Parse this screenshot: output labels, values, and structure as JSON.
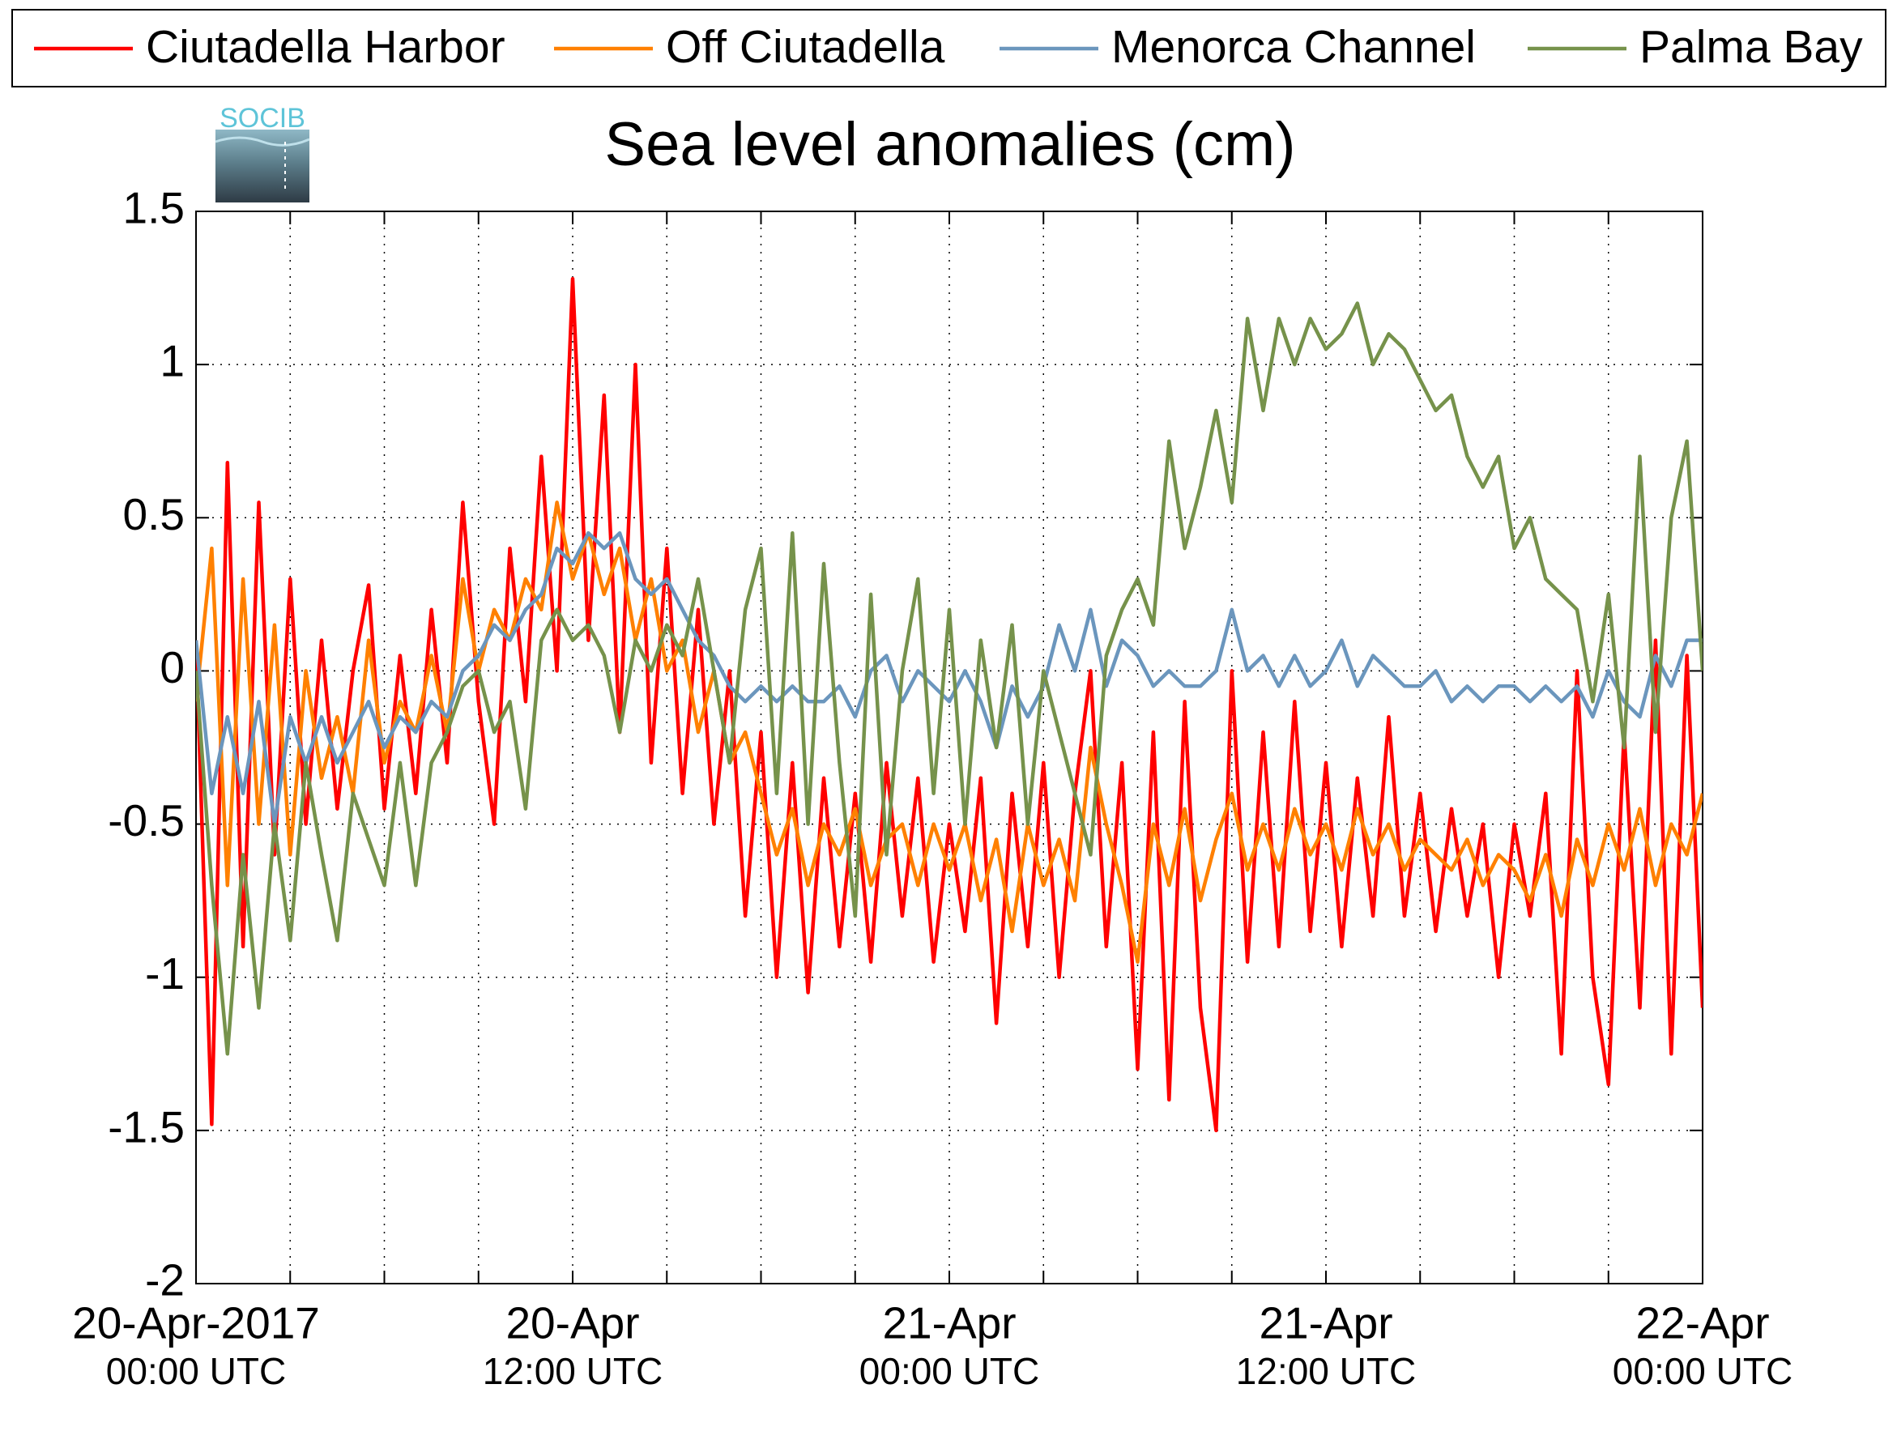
{
  "chart_data": {
    "type": "line",
    "title": "Sea level anomalies (cm)",
    "logo_text": "SOCIB",
    "legend": "top",
    "grid": true,
    "ylim": [
      -2,
      1.5
    ],
    "yticks": [
      -2,
      -1.5,
      -1,
      -0.5,
      0,
      0.5,
      1,
      1.5
    ],
    "xlim": [
      "2017-04-20T00:00",
      "2017-04-22T00:00"
    ],
    "xticks": [
      {
        "value": "2017-04-20T00:00",
        "label": [
          "20-Apr-2017",
          "00:00 UTC"
        ]
      },
      {
        "value": "2017-04-20T12:00",
        "label": [
          "20-Apr",
          "12:00 UTC"
        ]
      },
      {
        "value": "2017-04-21T00:00",
        "label": [
          "21-Apr",
          "00:00 UTC"
        ]
      },
      {
        "value": "2017-04-21T12:00",
        "label": [
          "21-Apr",
          "12:00 UTC"
        ]
      },
      {
        "value": "2017-04-22T00:00",
        "label": [
          "22-Apr",
          "00:00 UTC"
        ]
      }
    ],
    "xminorticks": [
      "2017-04-20T03:00",
      "2017-04-20T06:00",
      "2017-04-20T09:00",
      "2017-04-20T15:00",
      "2017-04-20T18:00",
      "2017-04-20T21:00",
      "2017-04-21T03:00",
      "2017-04-21T06:00",
      "2017-04-21T09:00",
      "2017-04-21T15:00",
      "2017-04-21T18:00",
      "2017-04-21T21:00"
    ],
    "x": [
      "2017-04-20T00:00",
      "2017-04-20T00:30",
      "2017-04-20T01:00",
      "2017-04-20T01:30",
      "2017-04-20T02:00",
      "2017-04-20T02:30",
      "2017-04-20T03:00",
      "2017-04-20T03:30",
      "2017-04-20T04:00",
      "2017-04-20T04:30",
      "2017-04-20T05:00",
      "2017-04-20T05:30",
      "2017-04-20T06:00",
      "2017-04-20T06:30",
      "2017-04-20T07:00",
      "2017-04-20T07:30",
      "2017-04-20T08:00",
      "2017-04-20T08:30",
      "2017-04-20T09:00",
      "2017-04-20T09:30",
      "2017-04-20T10:00",
      "2017-04-20T10:30",
      "2017-04-20T11:00",
      "2017-04-20T11:30",
      "2017-04-20T12:00",
      "2017-04-20T12:30",
      "2017-04-20T13:00",
      "2017-04-20T13:30",
      "2017-04-20T14:00",
      "2017-04-20T14:30",
      "2017-04-20T15:00",
      "2017-04-20T15:30",
      "2017-04-20T16:00",
      "2017-04-20T16:30",
      "2017-04-20T17:00",
      "2017-04-20T17:30",
      "2017-04-20T18:00",
      "2017-04-20T18:30",
      "2017-04-20T19:00",
      "2017-04-20T19:30",
      "2017-04-20T20:00",
      "2017-04-20T20:30",
      "2017-04-20T21:00",
      "2017-04-20T21:30",
      "2017-04-20T22:00",
      "2017-04-20T22:30",
      "2017-04-20T23:00",
      "2017-04-20T23:30",
      "2017-04-21T00:00",
      "2017-04-21T00:30",
      "2017-04-21T01:00",
      "2017-04-21T01:30",
      "2017-04-21T02:00",
      "2017-04-21T02:30",
      "2017-04-21T03:00",
      "2017-04-21T03:30",
      "2017-04-21T04:00",
      "2017-04-21T04:30",
      "2017-04-21T05:00",
      "2017-04-21T05:30",
      "2017-04-21T06:00",
      "2017-04-21T06:30",
      "2017-04-21T07:00",
      "2017-04-21T07:30",
      "2017-04-21T08:00",
      "2017-04-21T08:30",
      "2017-04-21T09:00",
      "2017-04-21T09:30",
      "2017-04-21T10:00",
      "2017-04-21T10:30",
      "2017-04-21T11:00",
      "2017-04-21T11:30",
      "2017-04-21T12:00",
      "2017-04-21T12:30",
      "2017-04-21T13:00",
      "2017-04-21T13:30",
      "2017-04-21T14:00",
      "2017-04-21T14:30",
      "2017-04-21T15:00",
      "2017-04-21T15:30",
      "2017-04-21T16:00",
      "2017-04-21T16:30",
      "2017-04-21T17:00",
      "2017-04-21T17:30",
      "2017-04-21T18:00",
      "2017-04-21T18:30",
      "2017-04-21T19:00",
      "2017-04-21T19:30",
      "2017-04-21T20:00",
      "2017-04-21T20:30",
      "2017-04-21T21:00",
      "2017-04-21T21:30",
      "2017-04-21T22:00",
      "2017-04-21T22:30",
      "2017-04-21T23:00",
      "2017-04-21T23:30",
      "2017-04-22T00:00"
    ],
    "series": [
      {
        "name": "Ciutadella Harbor",
        "color": "#ff0000",
        "values": [
          0.1,
          -1.48,
          0.68,
          -0.9,
          0.55,
          -0.6,
          0.3,
          -0.5,
          0.1,
          -0.45,
          0.0,
          0.28,
          -0.45,
          0.05,
          -0.4,
          0.2,
          -0.3,
          0.55,
          -0.1,
          -0.5,
          0.4,
          -0.1,
          0.7,
          0.0,
          1.28,
          0.1,
          0.9,
          -0.2,
          1.0,
          -0.3,
          0.4,
          -0.4,
          0.2,
          -0.5,
          0.0,
          -0.8,
          -0.2,
          -1.0,
          -0.3,
          -1.05,
          -0.35,
          -0.9,
          -0.4,
          -0.95,
          -0.3,
          -0.8,
          -0.35,
          -0.95,
          -0.5,
          -0.85,
          -0.35,
          -1.15,
          -0.4,
          -0.9,
          -0.3,
          -1.0,
          -0.4,
          0.0,
          -0.9,
          -0.3,
          -1.3,
          -0.2,
          -1.4,
          -0.1,
          -1.1,
          -1.5,
          0.0,
          -0.95,
          -0.2,
          -0.9,
          -0.1,
          -0.85,
          -0.3,
          -0.9,
          -0.35,
          -0.8,
          -0.15,
          -0.8,
          -0.4,
          -0.85,
          -0.45,
          -0.8,
          -0.5,
          -1.0,
          -0.5,
          -0.8,
          -0.4,
          -1.25,
          0.0,
          -1.0,
          -1.35,
          -0.2,
          -1.1,
          0.1,
          -1.25,
          0.05,
          -1.1
        ]
      },
      {
        "name": "Off Ciutadella",
        "color": "#ff8000",
        "values": [
          -0.1,
          0.4,
          -0.7,
          0.3,
          -0.5,
          0.15,
          -0.6,
          0.0,
          -0.35,
          -0.15,
          -0.4,
          0.1,
          -0.3,
          -0.1,
          -0.2,
          0.05,
          -0.2,
          0.3,
          0.0,
          0.2,
          0.1,
          0.3,
          0.2,
          0.55,
          0.3,
          0.45,
          0.25,
          0.4,
          0.1,
          0.3,
          0.0,
          0.1,
          -0.2,
          0.0,
          -0.3,
          -0.2,
          -0.4,
          -0.6,
          -0.45,
          -0.7,
          -0.5,
          -0.6,
          -0.45,
          -0.7,
          -0.55,
          -0.5,
          -0.7,
          -0.5,
          -0.65,
          -0.5,
          -0.75,
          -0.55,
          -0.85,
          -0.5,
          -0.7,
          -0.55,
          -0.75,
          -0.25,
          -0.5,
          -0.7,
          -0.95,
          -0.5,
          -0.7,
          -0.45,
          -0.75,
          -0.55,
          -0.4,
          -0.65,
          -0.5,
          -0.65,
          -0.45,
          -0.6,
          -0.5,
          -0.65,
          -0.45,
          -0.6,
          -0.5,
          -0.65,
          -0.55,
          -0.6,
          -0.65,
          -0.55,
          -0.7,
          -0.6,
          -0.65,
          -0.75,
          -0.6,
          -0.8,
          -0.55,
          -0.7,
          -0.5,
          -0.65,
          -0.45,
          -0.7,
          -0.5,
          -0.6,
          -0.4
        ]
      },
      {
        "name": "Menorca Channel",
        "color": "#6b96bd",
        "values": [
          0.1,
          -0.4,
          -0.15,
          -0.4,
          -0.1,
          -0.5,
          -0.15,
          -0.3,
          -0.15,
          -0.3,
          -0.2,
          -0.1,
          -0.25,
          -0.15,
          -0.2,
          -0.1,
          -0.15,
          0.0,
          0.05,
          0.15,
          0.1,
          0.2,
          0.25,
          0.4,
          0.35,
          0.45,
          0.4,
          0.45,
          0.3,
          0.25,
          0.3,
          0.2,
          0.1,
          0.05,
          -0.05,
          -0.1,
          -0.05,
          -0.1,
          -0.05,
          -0.1,
          -0.1,
          -0.05,
          -0.15,
          0.0,
          0.05,
          -0.1,
          0.0,
          -0.05,
          -0.1,
          0.0,
          -0.1,
          -0.25,
          -0.05,
          -0.15,
          -0.05,
          0.15,
          0.0,
          0.2,
          -0.05,
          0.1,
          0.05,
          -0.05,
          0.0,
          -0.05,
          -0.05,
          0.0,
          0.2,
          0.0,
          0.05,
          -0.05,
          0.05,
          -0.05,
          0.0,
          0.1,
          -0.05,
          0.05,
          0.0,
          -0.05,
          -0.05,
          0.0,
          -0.1,
          -0.05,
          -0.1,
          -0.05,
          -0.05,
          -0.1,
          -0.05,
          -0.1,
          -0.05,
          -0.15,
          0.0,
          -0.1,
          -0.15,
          0.05,
          -0.05,
          0.1,
          0.1
        ]
      },
      {
        "name": "Palma Bay",
        "color": "#76924b",
        "values": [
          0.0,
          -0.7,
          -1.25,
          -0.6,
          -1.1,
          -0.5,
          -0.88,
          -0.3,
          -0.6,
          -0.88,
          -0.4,
          -0.55,
          -0.7,
          -0.3,
          -0.7,
          -0.3,
          -0.2,
          -0.05,
          0.0,
          -0.2,
          -0.1,
          -0.45,
          0.1,
          0.2,
          0.1,
          0.15,
          0.05,
          -0.2,
          0.1,
          0.0,
          0.15,
          0.05,
          0.3,
          0.0,
          -0.3,
          0.2,
          0.4,
          -0.4,
          0.45,
          -0.5,
          0.35,
          -0.3,
          -0.8,
          0.25,
          -0.6,
          0.0,
          0.3,
          -0.4,
          0.2,
          -0.5,
          0.1,
          -0.25,
          0.15,
          -0.5,
          0.0,
          -0.2,
          -0.4,
          -0.6,
          0.05,
          0.2,
          0.3,
          0.15,
          0.75,
          0.4,
          0.6,
          0.85,
          0.55,
          1.15,
          0.85,
          1.15,
          1.0,
          1.15,
          1.05,
          1.1,
          1.2,
          1.0,
          1.1,
          1.05,
          0.95,
          0.85,
          0.9,
          0.7,
          0.6,
          0.7,
          0.4,
          0.5,
          0.3,
          0.25,
          0.2,
          -0.1,
          0.25,
          -0.25,
          0.7,
          -0.2,
          0.5,
          0.75,
          0.0
        ]
      }
    ]
  }
}
